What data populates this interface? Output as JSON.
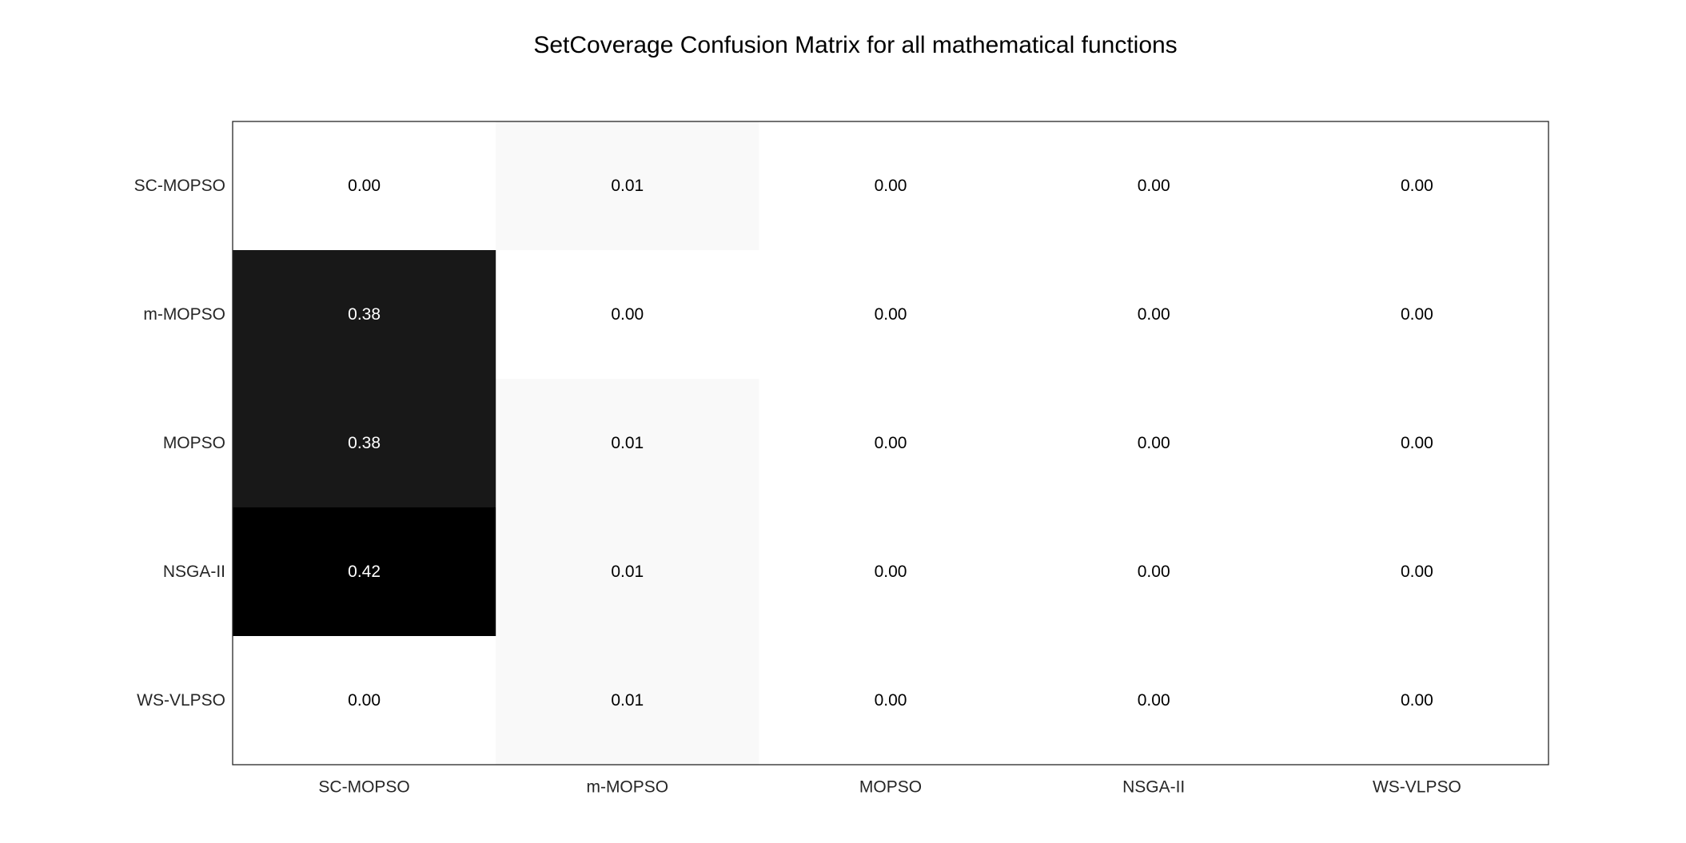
{
  "chart_data": {
    "type": "heatmap",
    "title": "SetCoverage Confusion Matrix for all mathematical functions",
    "xlabel": "",
    "ylabel": "",
    "x_categories": [
      "SC-MOPSO",
      "m-MOPSO",
      "MOPSO",
      "NSGA-II",
      "WS-VLPSO"
    ],
    "y_categories": [
      "SC-MOPSO",
      "m-MOPSO",
      "MOPSO",
      "NSGA-II",
      "WS-VLPSO"
    ],
    "values": [
      [
        0.0,
        0.01,
        0.0,
        0.0,
        0.0
      ],
      [
        0.38,
        0.0,
        0.0,
        0.0,
        0.0
      ],
      [
        0.38,
        0.01,
        0.0,
        0.0,
        0.0
      ],
      [
        0.42,
        0.01,
        0.0,
        0.0,
        0.0
      ],
      [
        0.0,
        0.01,
        0.0,
        0.0,
        0.0
      ]
    ],
    "value_format": "0.00",
    "colormap": "white-to-black (gray, reversed)",
    "color_low": "#ffffff",
    "color_high": "#000000",
    "grid": false,
    "colorbar": false
  }
}
